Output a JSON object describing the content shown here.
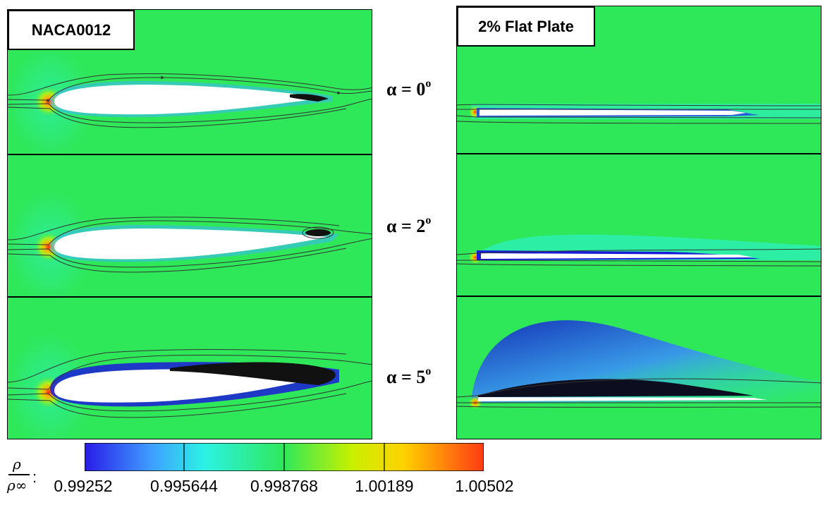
{
  "panels": {
    "left_title": "NACA0012",
    "right_title": "2% Flat Plate"
  },
  "angles": [
    {
      "symbol": "α",
      "eq": " = ",
      "value": "0",
      "unit": "o"
    },
    {
      "symbol": "α",
      "eq": " = ",
      "value": "2",
      "unit": "o"
    },
    {
      "symbol": "α",
      "eq": " = ",
      "value": "5",
      "unit": "o"
    }
  ],
  "colorbar": {
    "label_num": "ρ",
    "label_den": "ρ∞",
    "label_suffix": ":",
    "ticks": [
      "0.99252",
      "0.995644",
      "0.998768",
      "1.00189",
      "1.00502"
    ],
    "colors": [
      "#2a1be8",
      "#3ea0ff",
      "#2cf2e4",
      "#2fe85a",
      "#c8f000",
      "#ffd200",
      "#ff3a14"
    ]
  }
}
